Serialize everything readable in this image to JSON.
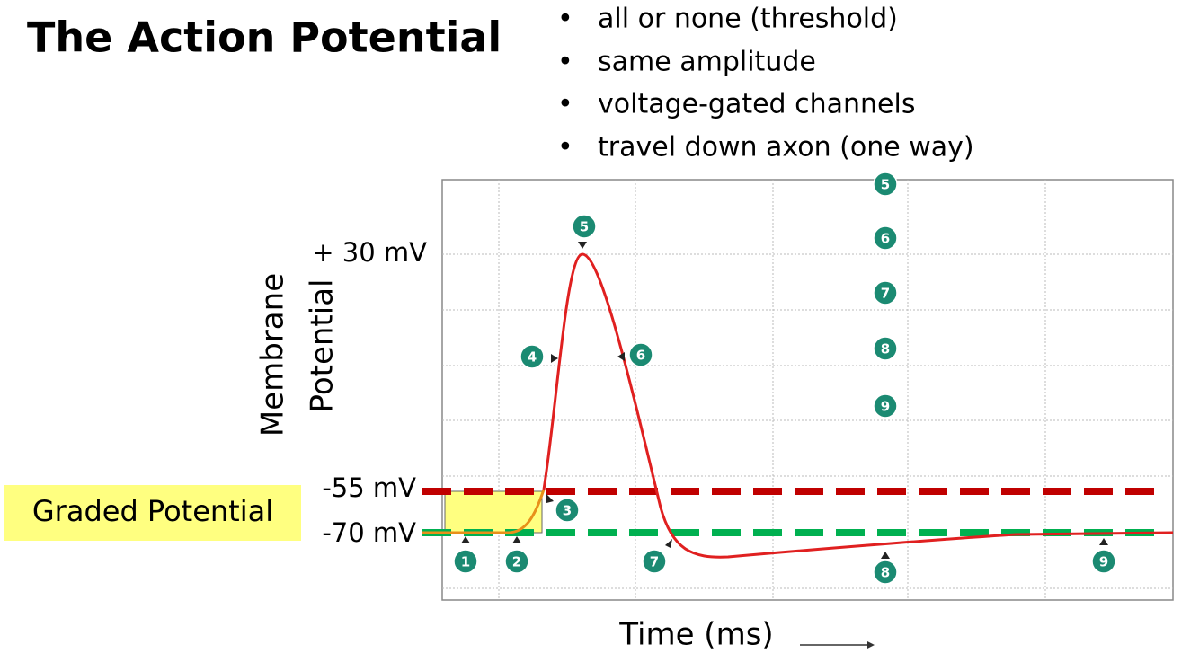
{
  "header": {
    "title": "The Action Potential"
  },
  "bullets": [
    "all or none (threshold)",
    "same amplitude",
    "voltage-gated channels",
    "travel down axon (one way)"
  ],
  "diagram": {
    "y_axis_label": [
      "Membrane",
      "Potential"
    ],
    "x_axis_label": "Time (ms)",
    "levels": [
      "+ 30 mV",
      "-55 mV",
      "-70 mV"
    ],
    "graded_label": "Graded Potential",
    "markers": [
      "1",
      "2",
      "3",
      "4",
      "5",
      "6",
      "7",
      "8",
      "9"
    ],
    "key": [
      "5",
      "6",
      "7",
      "8",
      "9"
    ]
  }
}
